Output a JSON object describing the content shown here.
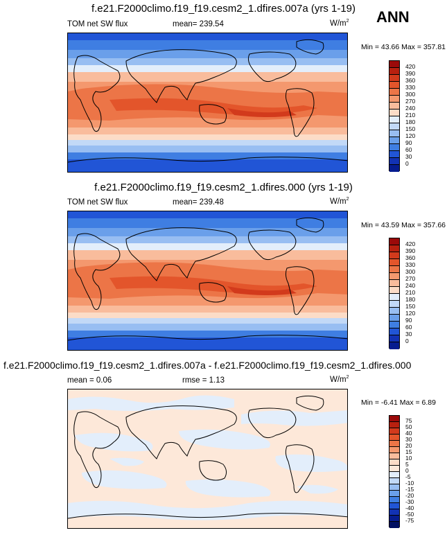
{
  "season": "ANN",
  "units_base": "W/m",
  "units_sup": "2",
  "panels": [
    {
      "title": "f.e21.F2000climo.f19_f19.cesm2_1.dfires.007a (yrs 1-19)",
      "left_label": "TOM net SW flux",
      "mid_label": "mean= 239.54",
      "minmax": "Min = 43.66 Max = 357.81",
      "colorbar_ticks": [
        "420",
        "390",
        "360",
        "330",
        "300",
        "270",
        "240",
        "210",
        "180",
        "150",
        "120",
        "90",
        "60",
        "30",
        "0"
      ],
      "colors": [
        "#9b0a0a",
        "#b8200f",
        "#d23a1c",
        "#e3552b",
        "#ec7547",
        "#f4986e",
        "#f9bc9c",
        "#fcdcc7",
        "#e3eefb",
        "#c2d9f7",
        "#98bef2",
        "#6a9fea",
        "#3f7ee2",
        "#2155d6",
        "#1232b4",
        "#061c8f"
      ]
    },
    {
      "title": "f.e21.F2000climo.f19_f19.cesm2_1.dfires.000 (yrs 1-19)",
      "left_label": "TOM net SW flux",
      "mid_label": "mean= 239.48",
      "minmax": "Min = 43.59 Max = 357.66",
      "colorbar_ticks": [
        "420",
        "390",
        "360",
        "330",
        "300",
        "270",
        "240",
        "210",
        "180",
        "150",
        "120",
        "90",
        "60",
        "30",
        "0"
      ],
      "colors": [
        "#9b0a0a",
        "#b8200f",
        "#d23a1c",
        "#e3552b",
        "#ec7547",
        "#f4986e",
        "#f9bc9c",
        "#fcdcc7",
        "#e3eefb",
        "#c2d9f7",
        "#98bef2",
        "#6a9fea",
        "#3f7ee2",
        "#2155d6",
        "#1232b4",
        "#061c8f"
      ]
    },
    {
      "title": "f.e21.F2000climo.f19_f19.cesm2_1.dfires.007a - f.e21.F2000climo.f19_f19.cesm2_1.dfires.000",
      "left_label": "mean = 0.06",
      "mid_label": "rmse = 1.13",
      "minmax": "Min = -6.41 Max = 6.89",
      "colorbar_ticks": [
        "75",
        "50",
        "40",
        "30",
        "20",
        "15",
        "10",
        "5",
        "0",
        "-5",
        "-10",
        "-15",
        "-20",
        "-30",
        "-40",
        "-50",
        "-75"
      ],
      "colors": [
        "#9b0a0a",
        "#b8200f",
        "#d23a1c",
        "#e3552b",
        "#ec7547",
        "#f4986e",
        "#f9bc9c",
        "#fcdcc7",
        "#fde8d9",
        "#e3eefb",
        "#c2d9f7",
        "#98bef2",
        "#6a9fea",
        "#3f7ee2",
        "#2155d6",
        "#1232b4",
        "#061c8f",
        "#001062"
      ]
    }
  ],
  "chart_data": [
    {
      "type": "heatmap",
      "title": "f.e21.F2000climo.f19_f19.cesm2_1.dfires.007a (yrs 1-19)",
      "variable": "TOM net SW flux",
      "units": "W/m2",
      "mean": 239.54,
      "min": 43.66,
      "max": 357.81,
      "levels": [
        0,
        30,
        60,
        90,
        120,
        150,
        180,
        210,
        240,
        270,
        300,
        330,
        360,
        390,
        420
      ]
    },
    {
      "type": "heatmap",
      "title": "f.e21.F2000climo.f19_f19.cesm2_1.dfires.000 (yrs 1-19)",
      "variable": "TOM net SW flux",
      "units": "W/m2",
      "mean": 239.48,
      "min": 43.59,
      "max": 357.66,
      "levels": [
        0,
        30,
        60,
        90,
        120,
        150,
        180,
        210,
        240,
        270,
        300,
        330,
        360,
        390,
        420
      ]
    },
    {
      "type": "heatmap",
      "title": "f.e21.F2000climo.f19_f19.cesm2_1.dfires.007a - f.e21.F2000climo.f19_f19.cesm2_1.dfires.000",
      "units": "W/m2",
      "mean": 0.06,
      "rmse": 1.13,
      "min": -6.41,
      "max": 6.89,
      "levels": [
        -75,
        -50,
        -40,
        -30,
        -20,
        -15,
        -10,
        -5,
        0,
        5,
        10,
        15,
        20,
        30,
        40,
        50,
        75
      ]
    }
  ]
}
